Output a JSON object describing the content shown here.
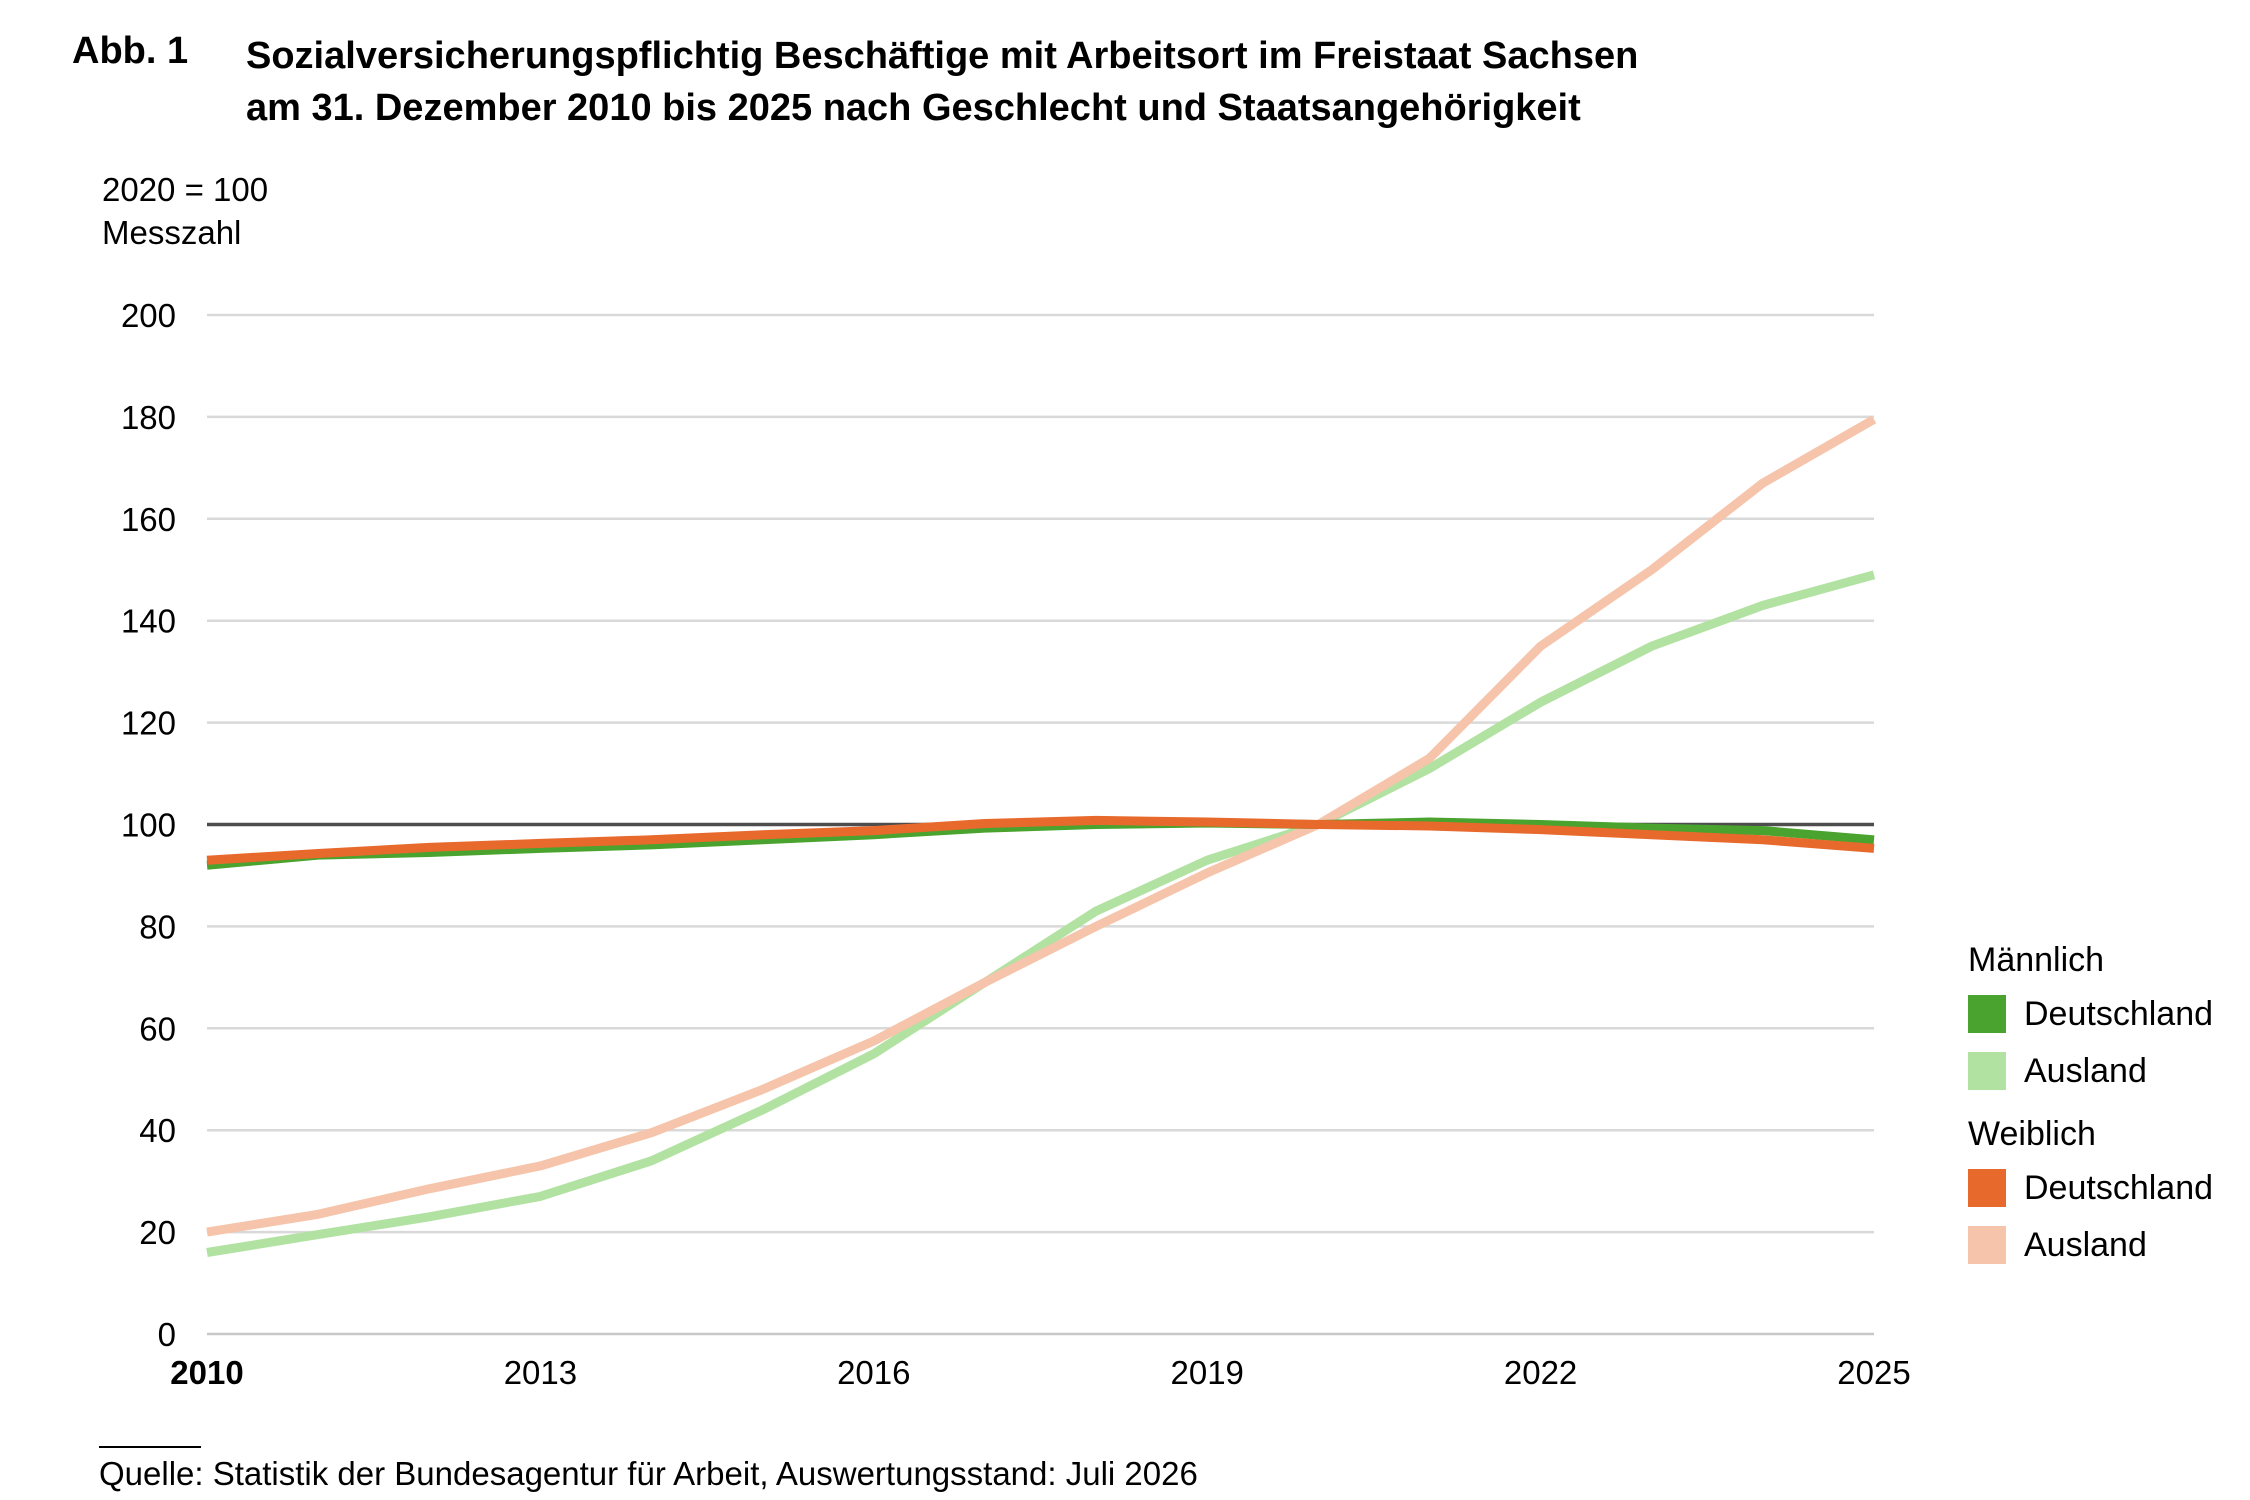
{
  "header": {
    "figure_number": "Abb. 1",
    "title_line1": "Sozialversicherungspflichtig Beschäftige mit Arbeitsort im Freistaat Sachsen",
    "title_line2": "am 31. Dezember 2010 bis 2025 nach Geschlecht und Staatsangehörigkeit"
  },
  "axis": {
    "unit_line1": "2020 = 100",
    "unit_line2": "Messzahl"
  },
  "legend": {
    "groups": [
      {
        "title": "Männlich",
        "items": [
          {
            "label": "Deutschland",
            "color": "#4aa32e"
          },
          {
            "label": "Ausland",
            "color": "#b2e2a2"
          }
        ]
      },
      {
        "title": "Weiblich",
        "items": [
          {
            "label": "Deutschland",
            "color": "#e8692c"
          },
          {
            "label": "Ausland",
            "color": "#f5c4aa"
          }
        ]
      }
    ]
  },
  "footer": {
    "source": "Quelle: Statistik der Bundesagentur für Arbeit, Auswertungsstand: Juli 2026"
  },
  "chart_data": {
    "type": "line",
    "x": [
      2010,
      2011,
      2012,
      2013,
      2014,
      2015,
      2016,
      2017,
      2018,
      2019,
      2020,
      2021,
      2022,
      2023,
      2024,
      2025
    ],
    "xticks": [
      "2010",
      "2013",
      "2016",
      "2019",
      "2022",
      "2025"
    ],
    "yticks": [
      "0",
      "20",
      "40",
      "60",
      "80",
      "100",
      "120",
      "140",
      "160",
      "180",
      "200"
    ],
    "ylim": [
      0,
      200
    ],
    "reference_line": 100,
    "grid": true,
    "legend_position": "right",
    "series": [
      {
        "name": "Männlich Deutschland",
        "color": "#4aa32e",
        "values": [
          92,
          94,
          94.5,
          95.3,
          96,
          97,
          98,
          99.3,
          100,
          100.3,
          100,
          100.5,
          100,
          99.3,
          98.8,
          97
        ]
      },
      {
        "name": "Männlich Ausland",
        "color": "#b2e2a2",
        "values": [
          16,
          19.5,
          23,
          27,
          34,
          44,
          55,
          69,
          83,
          93,
          100,
          111,
          124,
          135,
          143,
          149
        ]
      },
      {
        "name": "Weiblich Deutschland",
        "color": "#e8692c",
        "values": [
          93,
          94.3,
          95.5,
          96.3,
          97,
          98,
          98.8,
          100.2,
          100.8,
          100.5,
          100,
          99.7,
          99,
          98,
          97,
          95.3
        ]
      },
      {
        "name": "Weiblich Ausland",
        "color": "#f5c4aa",
        "values": [
          20,
          23.5,
          28.5,
          33,
          39.5,
          48,
          57.5,
          69,
          80,
          90.5,
          100,
          113,
          135,
          150,
          167,
          179.5
        ]
      }
    ]
  }
}
